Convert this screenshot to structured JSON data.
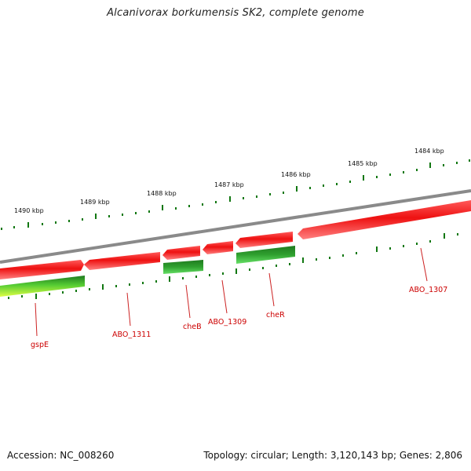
{
  "title": "Alcanivorax borkumensis SK2, complete genome",
  "footer": {
    "accession": "Accession: NC_008260",
    "summary": "Topology: circular; Length: 3,120,143 bp; Genes: 2,806"
  },
  "colors": {
    "backbone": "#8a8a8a",
    "gene_forward": "#ee1111",
    "gene_forward_highlight": "#ff7777",
    "gene_reverse_dark": "#1f7a1f",
    "gene_reverse_light": "#55dd55",
    "gene_yellow": "#ccff33",
    "tick": "#117711",
    "label_line": "#cc2222",
    "label_text": "#cc0000"
  },
  "scale_labels": [
    "1490 kbp",
    "1489 kbp",
    "1488 kbp",
    "1487 kbp",
    "1486 kbp",
    "1485 kbp",
    "1484 kbp"
  ],
  "genes": [
    {
      "name": "gspE",
      "strand": "reverse",
      "color": "gene_yellow"
    },
    {
      "name": "ABO_1311",
      "strand": "forward",
      "color": "gene_forward"
    },
    {
      "name": "cheB",
      "strand": "reverse",
      "color": "gene_reverse_dark"
    },
    {
      "name": "ABO_1309",
      "strand": "forward",
      "color": "gene_forward"
    },
    {
      "name": "cheR",
      "strand": "reverse",
      "color": "gene_reverse_dark"
    },
    {
      "name": "ABO_1307",
      "strand": "forward",
      "color": "gene_forward"
    }
  ]
}
